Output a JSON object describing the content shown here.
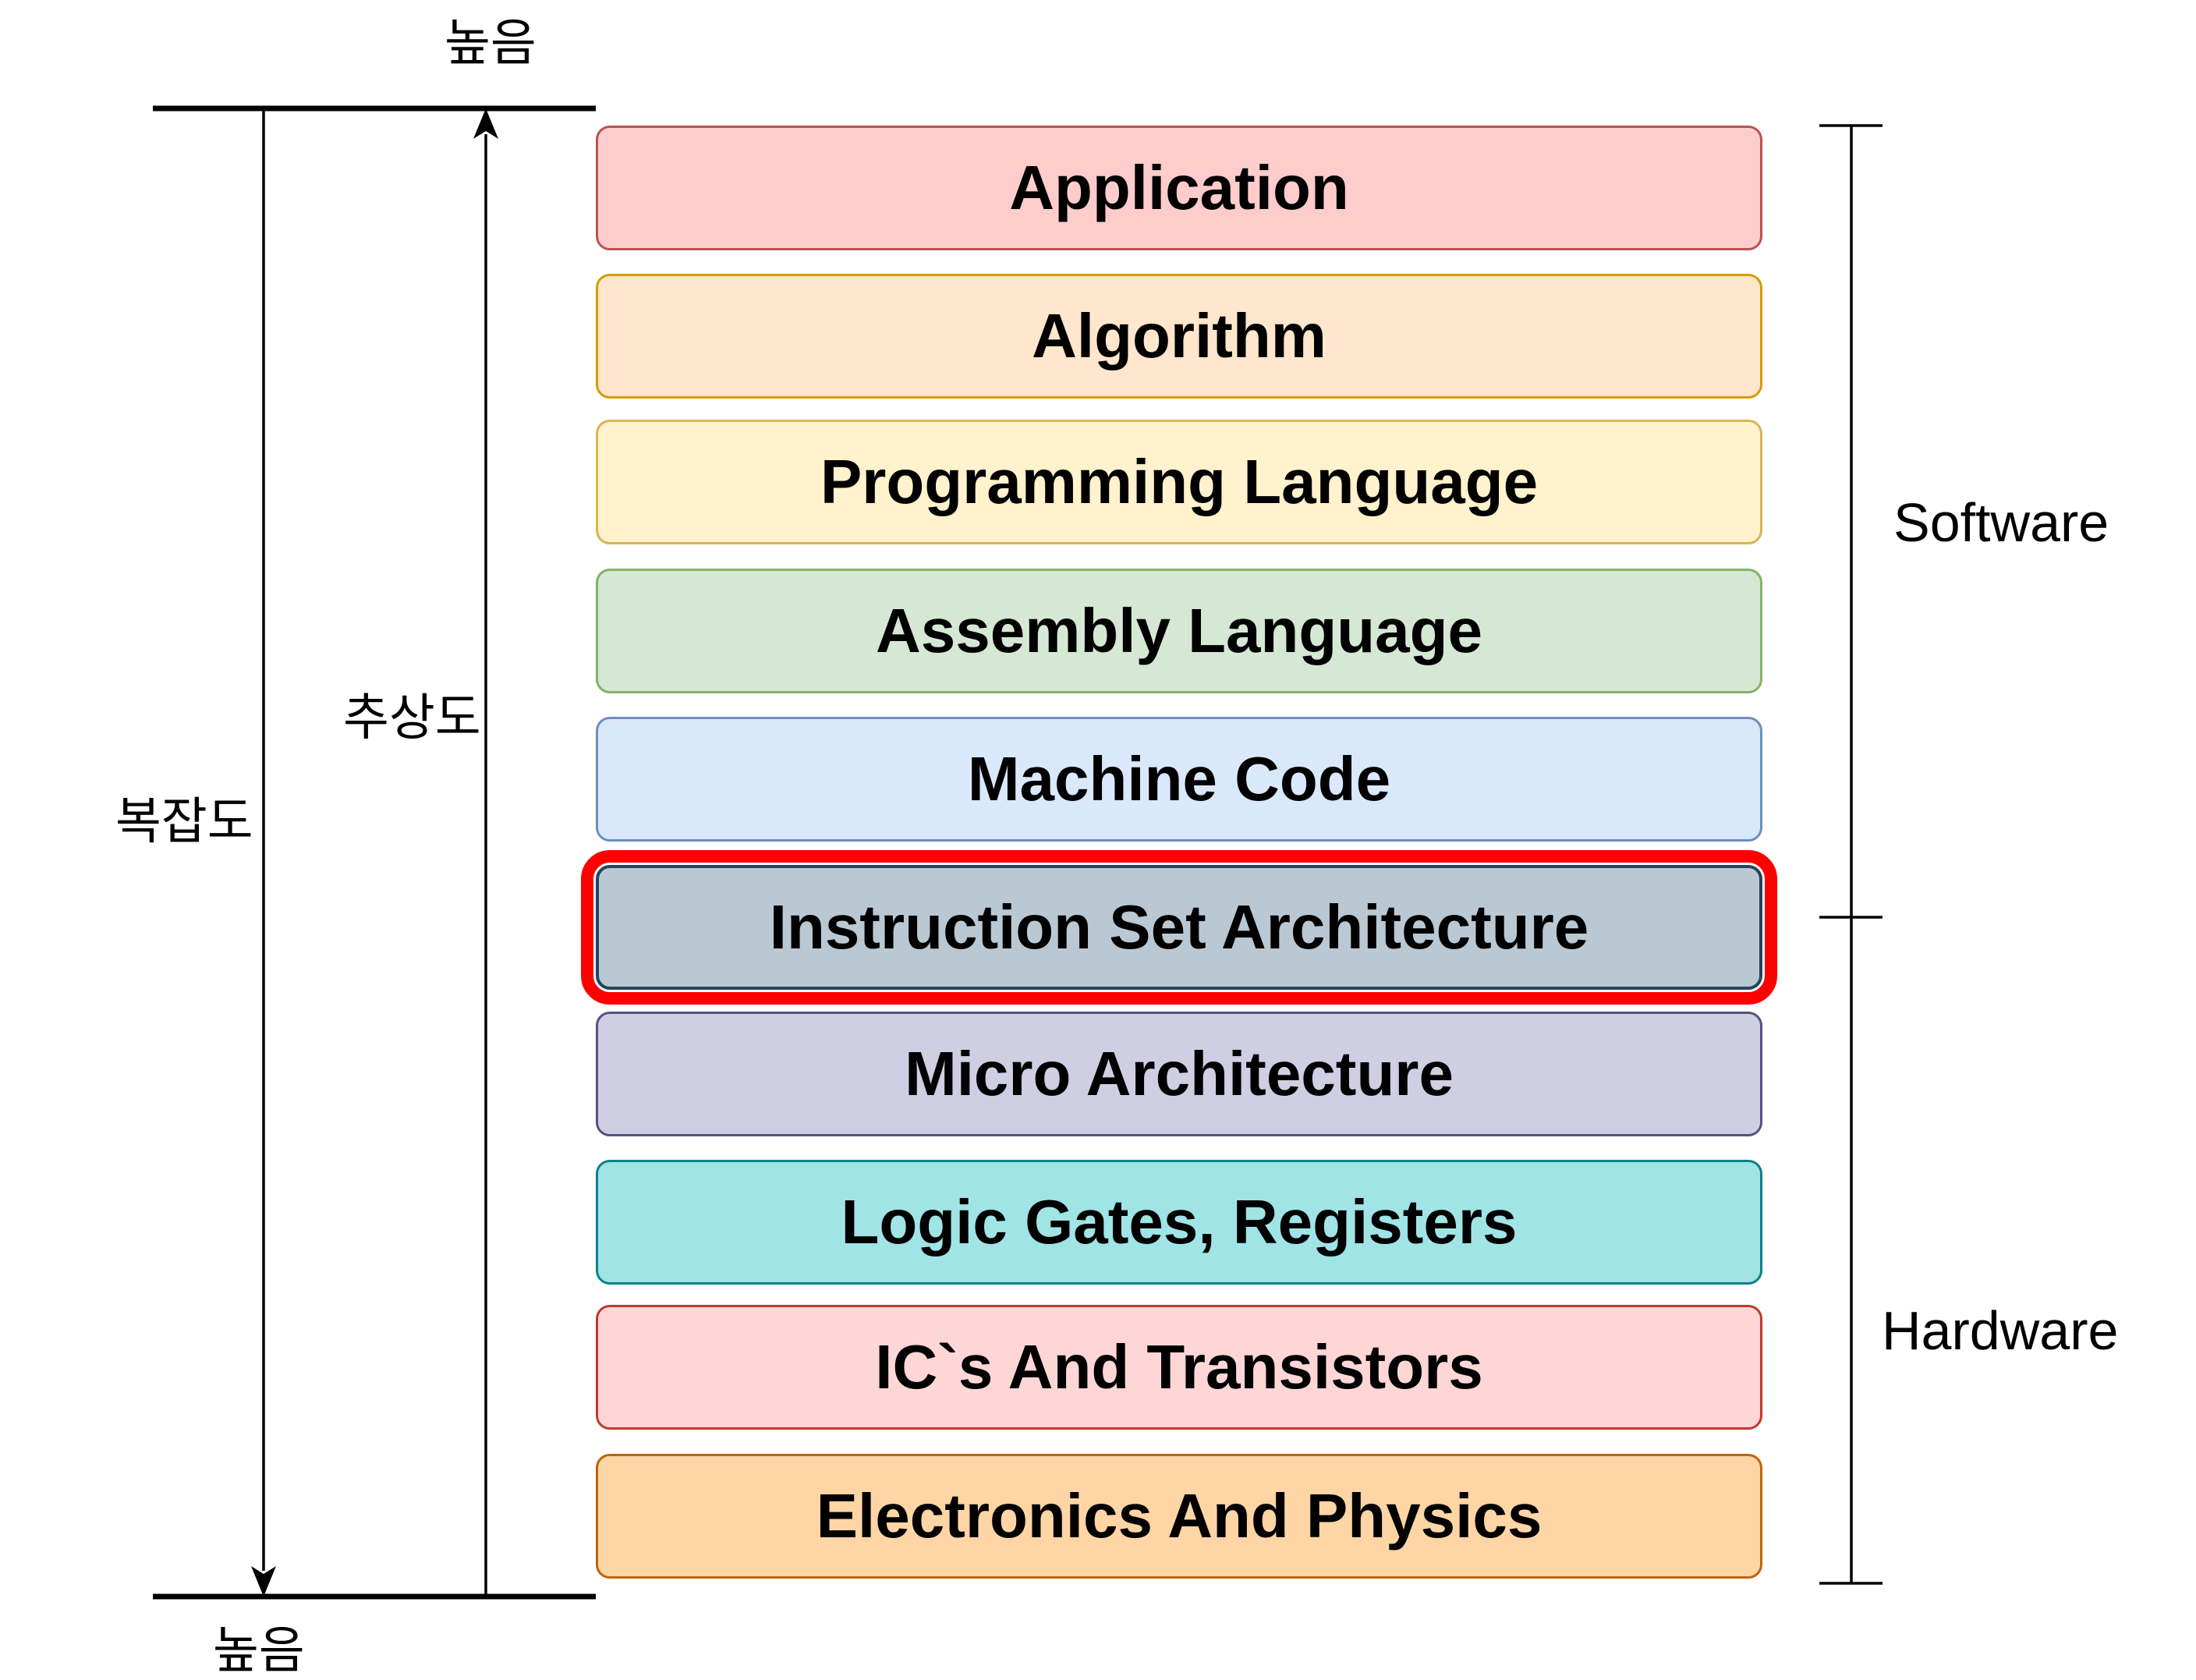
{
  "axes": {
    "top_label": "높음",
    "bottom_label": "높음",
    "complexity_label": "복잡도",
    "abstraction_label": "추상도"
  },
  "groups": {
    "software": "Software",
    "hardware": "Hardware"
  },
  "layers": [
    {
      "label": "Application",
      "fill": "#ffcccc",
      "stroke": "#b85450"
    },
    {
      "label": "Algorithm",
      "fill": "#ffe6cc",
      "stroke": "#d79b00"
    },
    {
      "label": "Programming Language",
      "fill": "#fff2cc",
      "stroke": "#d6b656"
    },
    {
      "label": "Assembly Language",
      "fill": "#d5e8d4",
      "stroke": "#82b366"
    },
    {
      "label": "Machine Code",
      "fill": "#dae8fc",
      "stroke": "#6c8ebf"
    },
    {
      "label": "Instruction Set Architecture",
      "fill": "#bac8d3",
      "stroke": "#23445d",
      "highlight_color": "#ff0000"
    },
    {
      "label": "Micro Architecture",
      "fill": "#d0cee2",
      "stroke": "#56517e"
    },
    {
      "label": "Logic Gates, Registers",
      "fill": "#a0e4e6",
      "stroke": "#0e8088"
    },
    {
      "label": "IC`s And Transistors",
      "fill": "#ffd6d6",
      "stroke": "#c0392b"
    },
    {
      "label": "Electronics And Physics",
      "fill": "#ffd5a6",
      "stroke": "#c0640a"
    }
  ],
  "highlighted_layer": "Instruction Set Architecture"
}
